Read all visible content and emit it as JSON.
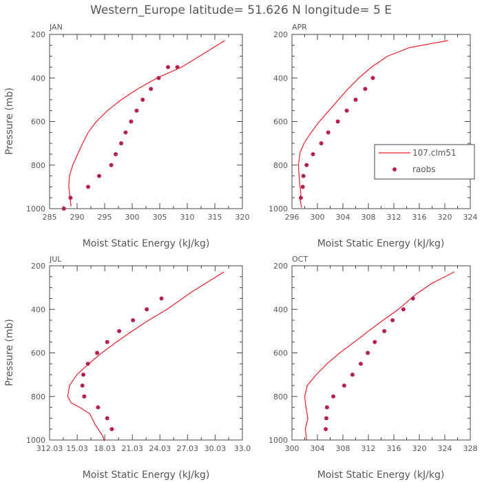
{
  "figure_title": "Western_Europe  latitude= 51.626 N longitude= 5 E",
  "colors": {
    "model": "#ee1c25",
    "obs": "#b5204f",
    "axis": "#444444",
    "text": "#555555"
  },
  "legend": {
    "model_label": "107.clm51",
    "obs_label": "raobs",
    "panel": 1
  },
  "chart_data": [
    {
      "type": "line",
      "title": "JAN",
      "xlabel": "Moist Static Energy (kJ/kg)",
      "ylabel": "Pressure (mb)",
      "xlim": [
        285,
        320
      ],
      "ylim": [
        1000,
        200
      ],
      "xticks": [
        285,
        290,
        295,
        300,
        305,
        310,
        315,
        320
      ],
      "xtick_labels": [
        "285",
        "290",
        "295",
        "300",
        "305",
        "310",
        "315",
        "320"
      ],
      "yticks": [
        200,
        400,
        600,
        800,
        1000
      ],
      "series": [
        {
          "x": [
            288.9,
            288.7,
            288.5,
            288.6,
            289.2,
            290.1,
            291.0,
            292.0,
            293.5,
            295.5,
            298.0,
            301.0,
            304.5,
            309.0,
            313.5,
            316.8
          ],
          "y": [
            990,
            950,
            900,
            850,
            800,
            750,
            700,
            650,
            600,
            550,
            500,
            450,
            400,
            350,
            280,
            228
          ]
        },
        {
          "x": [
            287.6,
            288.8,
            292.0,
            294.0,
            296.2,
            297.0,
            298.0,
            298.8,
            299.8,
            300.8,
            301.9,
            303.4,
            304.8,
            306.5,
            308.2
          ],
          "y": [
            1000,
            950,
            900,
            850,
            800,
            750,
            700,
            650,
            600,
            550,
            500,
            450,
            400,
            350,
            350
          ],
          "markers": true
        }
      ]
    },
    {
      "type": "line",
      "title": "APR",
      "xlabel": "Moist Static Energy (kJ/kg)",
      "ylabel": "",
      "xlim": [
        296,
        324
      ],
      "ylim": [
        1000,
        200
      ],
      "xticks": [
        296,
        300,
        304,
        308,
        312,
        316,
        320,
        324
      ],
      "xtick_labels": [
        "296",
        "300",
        "304",
        "308",
        "312",
        "316",
        "320",
        "324"
      ],
      "yticks": [
        200,
        400,
        600,
        800,
        1000
      ],
      "series": [
        {
          "x": [
            297.5,
            297.3,
            297.4,
            297.2,
            297.0,
            297.3,
            297.9,
            299.0,
            300.3,
            301.8,
            303.3,
            304.8,
            306.5,
            308.5,
            311.0,
            314.5,
            320.5
          ],
          "y": [
            995,
            960,
            930,
            880,
            800,
            740,
            700,
            650,
            600,
            550,
            500,
            450,
            400,
            350,
            300,
            260,
            228
          ]
        },
        {
          "x": [
            297.4,
            297.7,
            297.8,
            298.3,
            299.3,
            300.6,
            301.7,
            303.2,
            304.6,
            306.0,
            307.5,
            308.7
          ],
          "y": [
            950,
            900,
            850,
            800,
            750,
            700,
            650,
            600,
            550,
            500,
            450,
            400
          ],
          "markers": true
        }
      ]
    },
    {
      "type": "line",
      "title": "JUL",
      "xlabel": "Moist Static Energy (kJ/kg)",
      "ylabel": "Pressure (mb)",
      "xlim": [
        312.03,
        333.0
      ],
      "ylim": [
        1000,
        200
      ],
      "xticks": [
        312.03,
        315.03,
        318.03,
        321.03,
        324.03,
        327.03,
        330.03,
        333.0
      ],
      "xtick_labels": [
        "312.03",
        "15.03",
        "18.03",
        "21.03",
        "24.03",
        "27.03",
        "30.03",
        "33.0"
      ],
      "yticks": [
        200,
        400,
        600,
        800,
        1000
      ],
      "series": [
        {
          "x": [
            318.0,
            317.8,
            317.0,
            316.4,
            315.3,
            314.4,
            314.0,
            314.2,
            315.0,
            316.3,
            317.7,
            319.3,
            321.0,
            322.8,
            324.8,
            327.5,
            331.0
          ],
          "y": [
            1005,
            980,
            930,
            880,
            850,
            830,
            800,
            750,
            700,
            650,
            600,
            550,
            500,
            450,
            400,
            320,
            228
          ]
        },
        {
          "x": [
            318.8,
            318.3,
            317.3,
            315.8,
            315.6,
            315.7,
            316.2,
            317.2,
            318.3,
            319.6,
            321.1,
            322.6,
            324.2
          ],
          "y": [
            950,
            900,
            850,
            800,
            750,
            700,
            650,
            600,
            550,
            500,
            450,
            400,
            350
          ],
          "markers": true
        }
      ]
    },
    {
      "type": "line",
      "title": "OCT",
      "xlabel": "Moist Static Energy (kJ/kg)",
      "ylabel": "",
      "xlim": [
        300,
        328
      ],
      "ylim": [
        1000,
        200
      ],
      "xticks": [
        300,
        304,
        308,
        312,
        316,
        320,
        324,
        328
      ],
      "xtick_labels": [
        "300",
        "304",
        "308",
        "312",
        "316",
        "320",
        "324",
        "328"
      ],
      "yticks": [
        200,
        400,
        600,
        800,
        1000
      ],
      "series": [
        {
          "x": [
            302.3,
            302.1,
            302.5,
            302.2,
            302.0,
            302.4,
            303.8,
            305.5,
            307.5,
            309.8,
            312.0,
            314.3,
            316.7,
            319.5,
            322.0,
            325.5
          ],
          "y": [
            1000,
            950,
            900,
            850,
            800,
            750,
            700,
            650,
            600,
            550,
            500,
            450,
            400,
            330,
            280,
            228
          ]
        },
        {
          "x": [
            305.3,
            305.4,
            305.5,
            306.5,
            308.2,
            309.5,
            310.8,
            311.9,
            313.0,
            314.5,
            315.8,
            317.5,
            319.0
          ],
          "y": [
            950,
            900,
            850,
            800,
            750,
            700,
            650,
            600,
            550,
            500,
            450,
            400,
            350
          ],
          "markers": true
        }
      ]
    }
  ]
}
